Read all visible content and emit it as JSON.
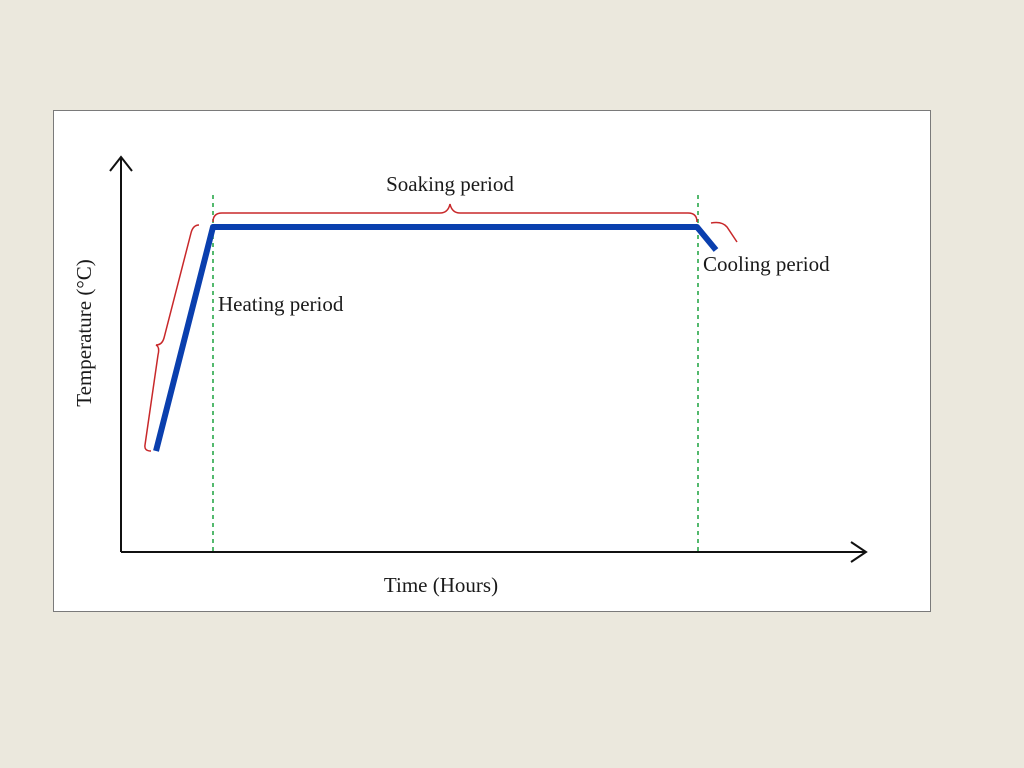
{
  "diagram": {
    "y_axis_label": "Temperature (°C)",
    "x_axis_label": "Time (Hours)",
    "phases": [
      {
        "name": "Heating period",
        "kind": "ramp-up"
      },
      {
        "name": "Soaking period",
        "kind": "hold"
      },
      {
        "name": "Cooling period",
        "kind": "ramp-down"
      }
    ]
  },
  "colors": {
    "background": "#ebe8dd",
    "panel": "#ffffff",
    "profile_line": "#0a3fae",
    "brace": "#c8282a",
    "divider": "#2aa84a",
    "axis": "#111111",
    "text": "#1a1a1a"
  }
}
